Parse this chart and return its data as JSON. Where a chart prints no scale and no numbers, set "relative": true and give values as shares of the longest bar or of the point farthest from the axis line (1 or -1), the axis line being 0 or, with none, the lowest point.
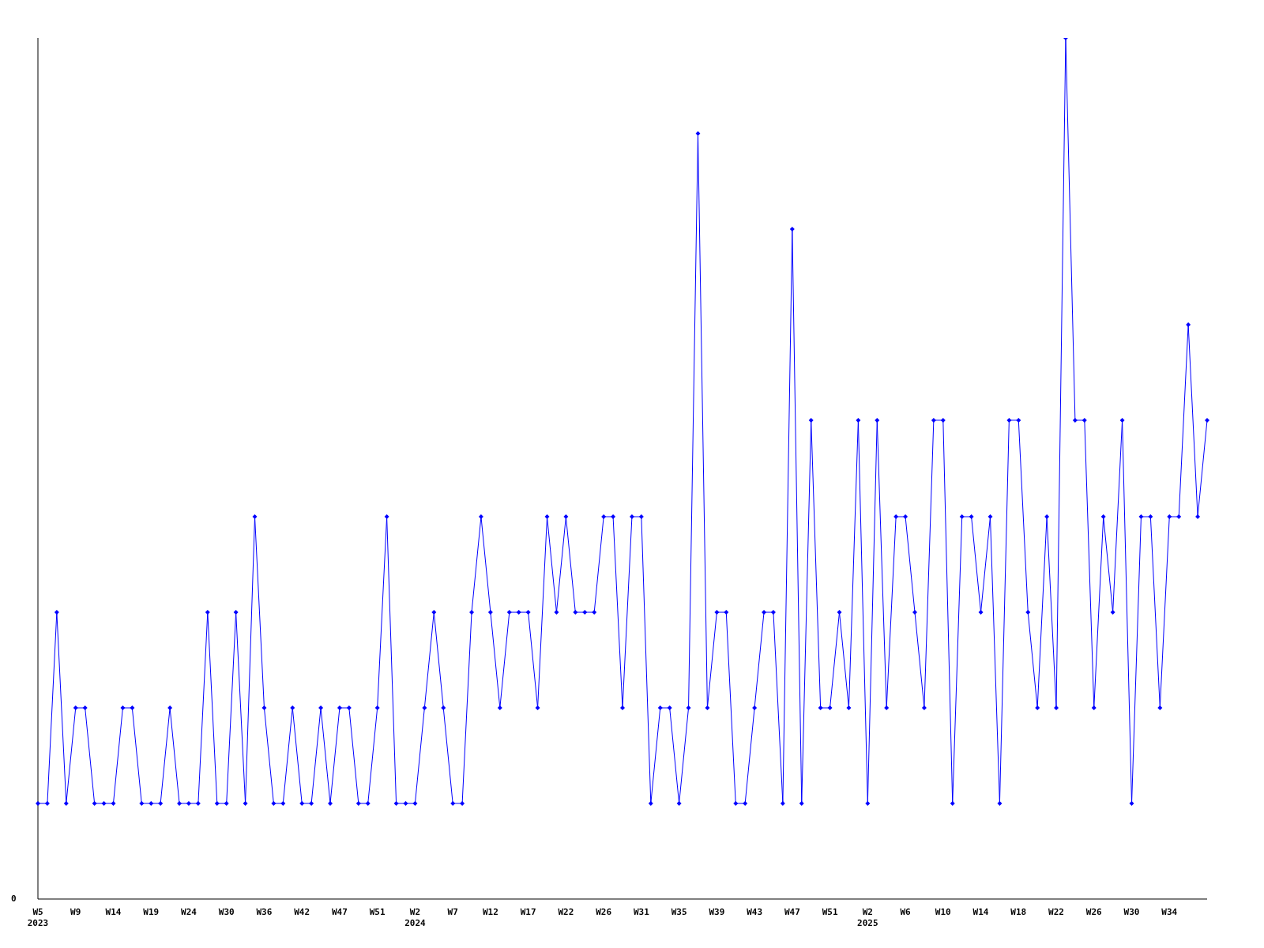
{
  "chart_data": {
    "type": "line",
    "relative": true,
    "grid": false,
    "legend": false,
    "marker": "diamond",
    "line_style": "solid",
    "annotations": [
      "0"
    ],
    "categories": [
      "W5\n2023",
      null,
      null,
      null,
      "W9",
      null,
      null,
      null,
      "W14",
      null,
      null,
      null,
      "W19",
      null,
      null,
      null,
      "W24",
      null,
      null,
      null,
      "W30",
      null,
      null,
      null,
      "W36",
      null,
      null,
      null,
      "W42",
      null,
      null,
      null,
      "W47",
      null,
      null,
      null,
      "W51",
      null,
      null,
      null,
      "W2\n2024",
      null,
      null,
      null,
      "W7",
      null,
      null,
      null,
      "W12",
      null,
      null,
      null,
      "W17",
      null,
      null,
      null,
      "W22",
      null,
      null,
      null,
      "W26",
      null,
      null,
      null,
      "W31",
      null,
      null,
      null,
      "W35",
      null,
      null,
      null,
      "W39",
      null,
      null,
      null,
      "W43",
      null,
      null,
      null,
      "W47",
      null,
      null,
      null,
      "W51",
      null,
      null,
      null,
      "W2\n2025",
      null,
      null,
      null,
      "W6",
      null,
      null,
      null,
      "W10",
      null,
      null,
      null,
      "W14",
      null,
      null,
      null,
      "W18",
      null,
      null,
      null,
      "W22",
      null,
      null,
      null,
      "W26",
      null,
      null,
      null,
      "W30",
      null,
      null,
      null,
      "W34",
      null,
      null,
      null,
      null
    ],
    "series": [
      {
        "color": "#0000ff",
        "values": [
          0.111,
          0.111,
          0.333,
          0.111,
          0.222,
          0.222,
          0.111,
          0.111,
          0.111,
          0.222,
          0.222,
          0.111,
          0.111,
          0.111,
          0.222,
          0.111,
          0.111,
          0.111,
          0.333,
          0.111,
          0.111,
          0.333,
          0.111,
          0.444,
          0.222,
          0.111,
          0.111,
          0.222,
          0.111,
          0.111,
          0.222,
          0.111,
          0.222,
          0.222,
          0.111,
          0.111,
          0.222,
          0.444,
          0.111,
          0.111,
          0.111,
          0.222,
          0.333,
          0.222,
          0.111,
          0.111,
          0.333,
          0.444,
          0.333,
          0.222,
          0.333,
          0.333,
          0.333,
          0.222,
          0.444,
          0.333,
          0.444,
          0.333,
          0.333,
          0.333,
          0.444,
          0.444,
          0.222,
          0.444,
          0.444,
          0.111,
          0.222,
          0.222,
          0.111,
          0.222,
          0.889,
          0.222,
          0.333,
          0.333,
          0.111,
          0.111,
          0.222,
          0.333,
          0.333,
          0.111,
          0.778,
          0.111,
          0.556,
          0.222,
          0.222,
          0.333,
          0.222,
          0.556,
          0.111,
          0.556,
          0.222,
          0.444,
          0.444,
          0.333,
          0.222,
          0.556,
          0.556,
          0.111,
          0.444,
          0.444,
          0.333,
          0.444,
          0.111,
          0.556,
          0.556,
          0.333,
          0.222,
          0.444,
          0.222,
          1,
          0.556,
          0.556,
          0.222,
          0.444,
          0.333,
          0.556,
          0.111,
          0.444,
          0.444,
          0.222,
          0.444,
          0.444,
          0.667,
          0.444,
          0.556
        ]
      }
    ]
  }
}
